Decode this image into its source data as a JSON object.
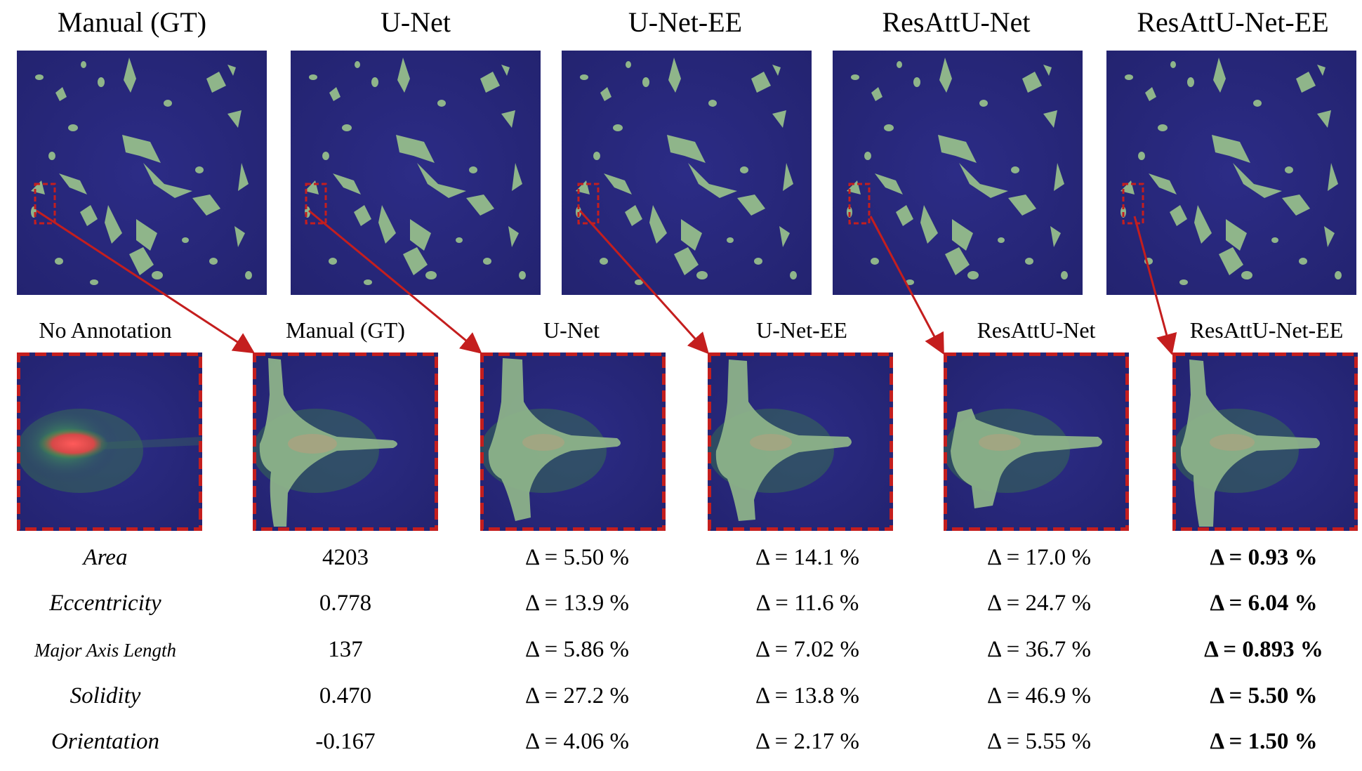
{
  "top_titles": [
    "Manual (GT)",
    "U-Net",
    "U-Net-EE",
    "ResAttU-Net",
    "ResAttU-Net-EE"
  ],
  "crop_titles": [
    "No Annotation",
    "Manual (GT)",
    "U-Net",
    "U-Net-EE",
    "ResAttU-Net",
    "ResAttU-Net-EE"
  ],
  "table": {
    "rows": [
      {
        "metric": "Area",
        "gt": "4203",
        "unet": "Δ = 5.50 %",
        "unet_ee": "Δ = 14.1 %",
        "resatt": "Δ = 17.0 %",
        "resatt_ee": "Δ = 0.93 %"
      },
      {
        "metric": "Eccentricity",
        "gt": "0.778",
        "unet": "Δ = 13.9 %",
        "unet_ee": "Δ = 11.6 %",
        "resatt": "Δ = 24.7 %",
        "resatt_ee": "Δ = 6.04 %"
      },
      {
        "metric": "Major Axis Length",
        "gt": "137",
        "unet": "Δ = 5.86 %",
        "unet_ee": "Δ = 7.02 %",
        "resatt": "Δ = 36.7 %",
        "resatt_ee": "Δ = 0.893 %"
      },
      {
        "metric": "Solidity",
        "gt": "0.470",
        "unet": "Δ = 27.2 %",
        "unet_ee": "Δ = 13.8 %",
        "resatt": "Δ = 46.9 %",
        "resatt_ee": "Δ = 5.50 %"
      },
      {
        "metric": "Orientation",
        "gt": "-0.167",
        "unet": "Δ = 4.06 %",
        "unet_ee": "Δ = 2.17 %",
        "resatt": "Δ = 5.55 %",
        "resatt_ee": "Δ = 1.50 %"
      }
    ]
  },
  "colors": {
    "background_blue": "#28287a",
    "cell_green": "#8fb58a",
    "annotation_red": "#c41e1e"
  }
}
